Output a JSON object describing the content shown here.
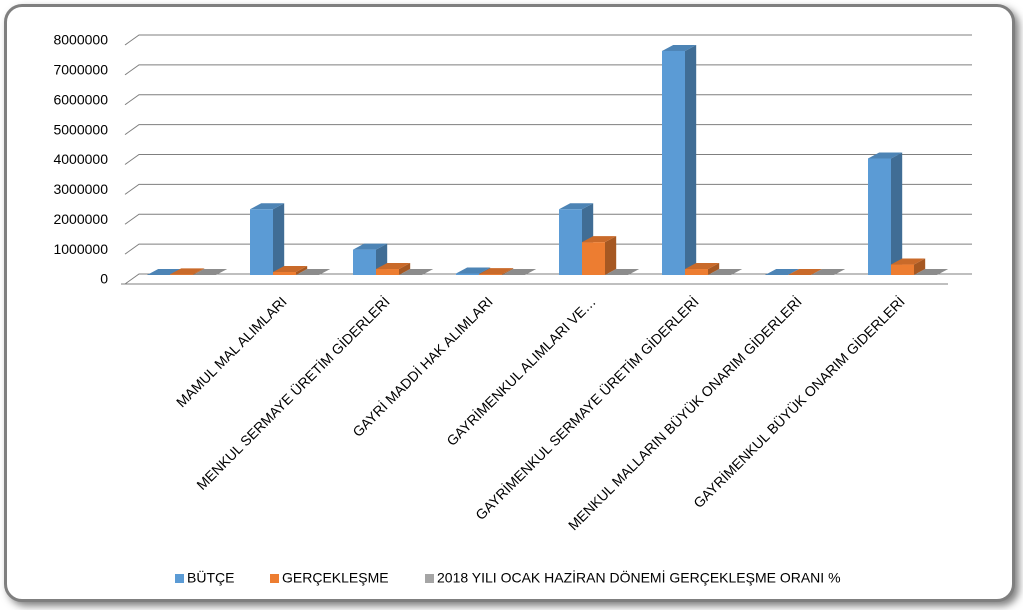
{
  "chart_data": {
    "type": "bar3d",
    "categories": [
      null,
      "MAMUL MAL ALIMLARI",
      "MENKUL SERMAYE ÜRETİM GİDERLERİ",
      "GAYRİ MADDİ HAK ALIMLARI",
      "GAYRİMENKUL ALIMLARI VE…",
      "GAYRİMENKUL SERMAYE ÜRETİM GİDERLERİ",
      "MENKUL MALLARIN BÜYÜK ONARIM GİDERLERİ",
      "GAYRİMENKUL BÜYÜK ONARIM GİDERLERİ"
    ],
    "series": [
      {
        "name": "BÜTÇE",
        "color": "#5b9bd5",
        "values": [
          0,
          2200000,
          850000,
          50000,
          2200000,
          7500000,
          0,
          3900000
        ]
      },
      {
        "name": "GERÇEKLEŞME",
        "color": "#ed7d31",
        "values": [
          20000,
          100000,
          200000,
          30000,
          1100000,
          200000,
          0,
          350000
        ]
      },
      {
        "name": "2018 YILI OCAK HAZİRAN DÖNEMİ GERÇEKLEŞME ORANI %",
        "color": "#a5a5a5",
        "values": [
          0,
          5,
          24,
          60,
          50,
          3,
          0,
          9
        ]
      }
    ],
    "ylim": [
      0,
      8000000
    ],
    "yticks": [
      0,
      1000000,
      2000000,
      3000000,
      4000000,
      5000000,
      6000000,
      7000000,
      8000000
    ],
    "grid": true,
    "legend": "bottom"
  }
}
